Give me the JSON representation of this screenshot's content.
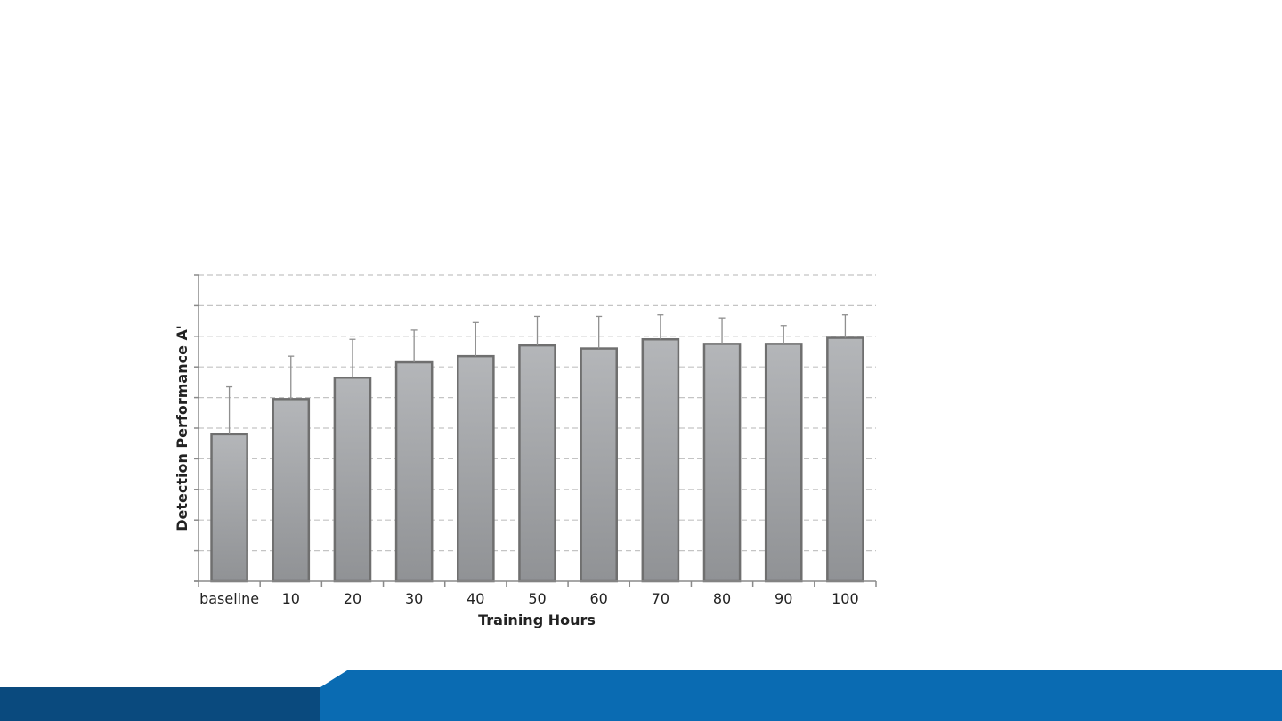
{
  "slide": {
    "footer_colors": {
      "dark": "#0a4a7e",
      "light": "#0a6bb2"
    }
  },
  "chart_data": {
    "type": "bar",
    "title": "",
    "xlabel": "Training Hours",
    "ylabel": "Detection Performance A'",
    "categories": [
      "baseline",
      "10",
      "20",
      "30",
      "40",
      "50",
      "60",
      "70",
      "80",
      "90",
      "100"
    ],
    "values": [
      4.8,
      5.95,
      6.65,
      7.15,
      7.35,
      7.7,
      7.6,
      7.9,
      7.75,
      7.75,
      7.95
    ],
    "error_upper": [
      6.35,
      7.35,
      7.9,
      8.2,
      8.45,
      8.65,
      8.65,
      8.7,
      8.6,
      8.35,
      8.7
    ],
    "ylim": [
      0,
      10
    ],
    "ytick_count": 10,
    "y_tick_labels_shown": false,
    "grid": "horizontal-dashed",
    "bar_color": "#a4a6aa",
    "bar_edge_color": "#6f6f6f"
  }
}
